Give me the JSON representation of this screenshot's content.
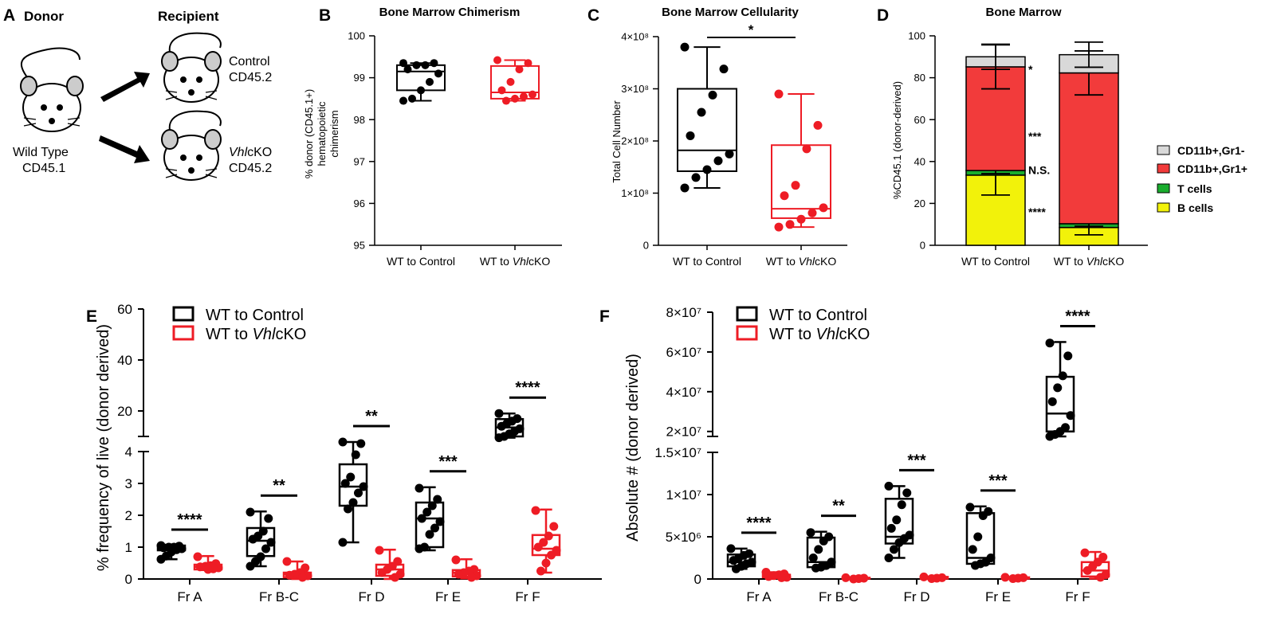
{
  "colors": {
    "control": "#000000",
    "vhl": "#ee1c25",
    "grey": "#d9d9d9",
    "red": "#f23b3b",
    "green": "#1aad2e",
    "yellow": "#f2f20a"
  },
  "panelA": {
    "letter": "A",
    "donor_label": "Donor",
    "recipient_label": "Recipient",
    "donor_caption_1": "Wild Type",
    "donor_caption_2": "CD45.1",
    "rec1_line1": "Control",
    "rec1_line2": "CD45.2",
    "rec2_italic": "Vhl",
    "rec2_rest": "cKO",
    "rec2_line2": "CD45.2"
  },
  "chart_data": [
    {
      "id": "B",
      "type": "box",
      "title": "Bone Marrow Chimerism",
      "ylabel_1": "% donor (CD45.1+)",
      "ylabel_2": "hematopoietic",
      "ylabel_3": "chimerism",
      "ylim": [
        95,
        100
      ],
      "yticks": [
        "95",
        "96",
        "97",
        "98",
        "99",
        "100"
      ],
      "categories": [
        "WT to Control",
        "WT to VhlcKO"
      ],
      "boxes": [
        {
          "name": "WT to Control",
          "min": 98.45,
          "q1": 98.7,
          "median": 99.15,
          "q3": 99.3,
          "max": 99.35,
          "points": [
            99.35,
            99.35,
            99.3,
            99.3,
            99.2,
            99.1,
            98.9,
            98.7,
            98.5,
            98.45
          ]
        },
        {
          "name": "WT to VhlcKO",
          "min": 98.45,
          "q1": 98.5,
          "median": 98.65,
          "q3": 99.28,
          "max": 99.42,
          "points": [
            99.42,
            99.35,
            99.2,
            98.9,
            98.7,
            98.6,
            98.55,
            98.5,
            98.45
          ]
        }
      ]
    },
    {
      "id": "C",
      "type": "box",
      "title": "Bone Marrow Cellularity",
      "ylabel": "Total Cell Number",
      "ylim": [
        0,
        4
      ],
      "yunit": "x10^8",
      "yticks": [
        "0",
        "1×10⁸",
        "2×10⁸",
        "3×10⁸",
        "4×10⁸"
      ],
      "significance": "*",
      "categories": [
        "WT to Control",
        "WT to VhlcKO"
      ],
      "boxes": [
        {
          "name": "WT to Control",
          "min": 1.1,
          "q1": 1.42,
          "median": 1.82,
          "q3": 3.0,
          "max": 3.8,
          "points": [
            3.8,
            3.38,
            2.88,
            2.55,
            2.1,
            1.75,
            1.62,
            1.45,
            1.3,
            1.1
          ]
        },
        {
          "name": "WT to VhlcKO",
          "min": 0.35,
          "q1": 0.52,
          "median": 0.7,
          "q3": 1.92,
          "max": 2.9,
          "points": [
            2.9,
            2.3,
            1.85,
            1.15,
            0.95,
            0.72,
            0.62,
            0.5,
            0.4,
            0.35
          ]
        }
      ]
    },
    {
      "id": "D",
      "type": "stacked_bar",
      "title": "Bone Marrow",
      "ylabel": "%CD45.1 (donor-derived)",
      "ylim": [
        0,
        100
      ],
      "yticks": [
        "0",
        "20",
        "40",
        "60",
        "80",
        "100"
      ],
      "categories": [
        "WT to Control",
        "WT to VhlcKO"
      ],
      "series": [
        {
          "name": "B cells",
          "values": [
            33.5,
            8.5
          ],
          "err": [
            9.5,
            3.5
          ],
          "sig": "****"
        },
        {
          "name": "T cells",
          "values": [
            2.2,
            1.8
          ],
          "err": [
            1.5,
            1.2
          ],
          "sig": "N.S."
        },
        {
          "name": "CD11b+,Gr1+",
          "values": [
            49.5,
            72.0
          ],
          "err": [
            10.5,
            10.5
          ],
          "sig": "***"
        },
        {
          "name": "CD11b+,Gr1-",
          "values": [
            4.8,
            8.7
          ],
          "err": [
            6.0,
            6.0
          ],
          "sig": "*"
        }
      ]
    },
    {
      "id": "E",
      "type": "box",
      "ylabel": "% frequency of live (donor derived)",
      "yticks_low": [
        "0",
        "1",
        "2",
        "3",
        "4"
      ],
      "yticks_high": [
        "20",
        "40",
        "60"
      ],
      "ylim_low": [
        0,
        4
      ],
      "ylim_high": [
        10,
        60
      ],
      "categories": [
        "Fr A",
        "Fr B-C",
        "Fr D",
        "Fr E",
        "Fr F"
      ],
      "legend": [
        "WT to Control",
        "WT to VhlcKO"
      ],
      "significance": [
        "****",
        "**",
        "**",
        "***",
        "****"
      ],
      "series": [
        {
          "name": "WT to Control",
          "boxes": [
            {
              "min": 0.62,
              "q1": 0.9,
              "median": 1.0,
              "q3": 1.05,
              "max": 1.05,
              "points": [
                1.05,
                1.03,
                1.0,
                1.0,
                0.98,
                0.95,
                0.92,
                0.85,
                0.72,
                0.62
              ]
            },
            {
              "min": 0.4,
              "q1": 0.72,
              "median": 1.2,
              "q3": 1.6,
              "max": 2.12,
              "points": [
                2.1,
                1.9,
                1.5,
                1.35,
                1.25,
                1.15,
                0.95,
                0.7,
                0.55,
                0.4
              ]
            },
            {
              "min": 1.15,
              "q1": 2.3,
              "median": 2.9,
              "q3": 3.6,
              "max": 4.3,
              "points": [
                4.3,
                4.25,
                3.9,
                3.2,
                3.0,
                2.9,
                2.7,
                2.4,
                2.2,
                1.15
              ]
            },
            {
              "min": 0.9,
              "q1": 1.0,
              "median": 1.9,
              "q3": 2.4,
              "max": 2.88,
              "points": [
                2.85,
                2.5,
                2.3,
                2.1,
                1.9,
                1.8,
                1.6,
                1.4,
                1.0,
                0.95
              ]
            },
            {
              "min": 9.5,
              "q1": 10.0,
              "median": 13.5,
              "q3": 16.8,
              "max": 19.0,
              "points": [
                19,
                17,
                16,
                15,
                14,
                13,
                12,
                11,
                10,
                9.5
              ]
            }
          ]
        },
        {
          "name": "WT to VhlcKO",
          "boxes": [
            {
              "min": 0.28,
              "q1": 0.3,
              "median": 0.38,
              "q3": 0.45,
              "max": 0.72,
              "points": [
                0.7,
                0.48,
                0.42,
                0.4,
                0.38,
                0.35,
                0.32,
                0.3
              ]
            },
            {
              "min": 0.0,
              "q1": 0.05,
              "median": 0.15,
              "q3": 0.2,
              "max": 0.55,
              "points": [
                0.55,
                0.35,
                0.2,
                0.15,
                0.12,
                0.1,
                0.05
              ]
            },
            {
              "min": 0.0,
              "q1": 0.1,
              "median": 0.3,
              "q3": 0.45,
              "max": 0.92,
              "points": [
                0.9,
                0.55,
                0.4,
                0.3,
                0.2,
                0.15,
                0.05
              ]
            },
            {
              "min": 0.02,
              "q1": 0.08,
              "median": 0.2,
              "q3": 0.28,
              "max": 0.62,
              "points": [
                0.6,
                0.3,
                0.25,
                0.2,
                0.15,
                0.1,
                0.05
              ]
            },
            {
              "min": 0.2,
              "q1": 0.75,
              "median": 0.95,
              "q3": 1.38,
              "max": 2.18,
              "points": [
                2.15,
                1.65,
                1.35,
                1.15,
                1.0,
                0.9,
                0.75,
                0.5,
                0.25
              ]
            }
          ]
        }
      ]
    },
    {
      "id": "F",
      "type": "box",
      "ylabel": "Absolute # (donor derived)",
      "yticks_low": [
        "0",
        "5×10⁶",
        "1×10⁷",
        "1.5×10⁷"
      ],
      "yticks_high": [
        "2×10⁷",
        "4×10⁷",
        "6×10⁷",
        "8×10⁷"
      ],
      "ylim_low": [
        0,
        15000000
      ],
      "ylim_high": [
        17500000,
        80000000
      ],
      "categories": [
        "Fr A",
        "Fr B-C",
        "Fr D",
        "Fr E",
        "Fr F"
      ],
      "legend": [
        "WT to Control",
        "WT to VhlcKO"
      ],
      "significance": [
        "****",
        "**",
        "***",
        "***",
        "****"
      ],
      "series": [
        {
          "name": "WT to Control",
          "boxes": [
            {
              "min": 1200000,
              "q1": 1500000,
              "median": 2000000,
              "q3": 2900000,
              "max": 3600000,
              "points": [
                3600000,
                3000000,
                2800000,
                2500000,
                2200000,
                2000000,
                1800000,
                1500000,
                1200000
              ]
            },
            {
              "min": 1200000,
              "q1": 1400000,
              "median": 2000000,
              "q3": 4900000,
              "max": 5600000,
              "points": [
                5500000,
                5000000,
                4500000,
                3500000,
                2500000,
                2000000,
                1600000,
                1400000,
                1300000
              ]
            },
            {
              "min": 2500000,
              "q1": 4200000,
              "median": 5000000,
              "q3": 9500000,
              "max": 11000000,
              "points": [
                11000000,
                10200000,
                8800000,
                7000000,
                6000000,
                5200000,
                4800000,
                4300000,
                3500000,
                2500000
              ]
            },
            {
              "min": 1600000,
              "q1": 1800000,
              "median": 2500000,
              "q3": 7800000,
              "max": 8600000,
              "points": [
                8500000,
                8000000,
                7500000,
                5000000,
                3500000,
                2500000,
                2000000,
                1800000,
                1600000
              ]
            },
            {
              "min": 17500000,
              "q1": 20000000,
              "median": 29000000,
              "q3": 47500000,
              "max": 65000000,
              "points": [
                64500000,
                58000000,
                48000000,
                42000000,
                35000000,
                28000000,
                22000000,
                20000000,
                18500000,
                17500000
              ]
            }
          ]
        },
        {
          "name": "WT to VhlcKO",
          "boxes": [
            {
              "min": 100000,
              "q1": 200000,
              "median": 350000,
              "q3": 500000,
              "max": 800000,
              "points": [
                800000,
                600000,
                500000,
                400000,
                300000,
                200000,
                150000
              ]
            },
            {
              "min": 0,
              "q1": 50000,
              "median": 100000,
              "q3": 150000,
              "max": 200000,
              "points": [
                150000,
                100000,
                50000,
                0
              ]
            },
            {
              "min": 0,
              "q1": 50000,
              "median": 150000,
              "q3": 250000,
              "max": 300000,
              "points": [
                250000,
                150000,
                100000,
                50000
              ]
            },
            {
              "min": 0,
              "q1": 50000,
              "median": 100000,
              "q3": 200000,
              "max": 250000,
              "points": [
                200000,
                150000,
                100000,
                50000
              ]
            },
            {
              "min": 50000,
              "q1": 300000,
              "median": 1000000,
              "q3": 2000000,
              "max": 3200000,
              "points": [
                3100000,
                2600000,
                2000000,
                1500000,
                1000000,
                500000,
                200000
              ]
            }
          ]
        }
      ]
    }
  ],
  "labels": {
    "B": "B",
    "C": "C",
    "D": "D",
    "E": "E",
    "F": "F",
    "wt_control": "WT to Control",
    "wt_to": "WT to ",
    "vhl": "Vhl",
    "cko": "cKO",
    "legend_control": "WT to Control",
    "legend_vhl_prefix": "WT to ",
    "legend_vhl_rest": "cKO",
    "d_legend": [
      "CD11b+,Gr1-",
      "CD11b+,Gr1+",
      "T cells",
      "B cells"
    ]
  }
}
